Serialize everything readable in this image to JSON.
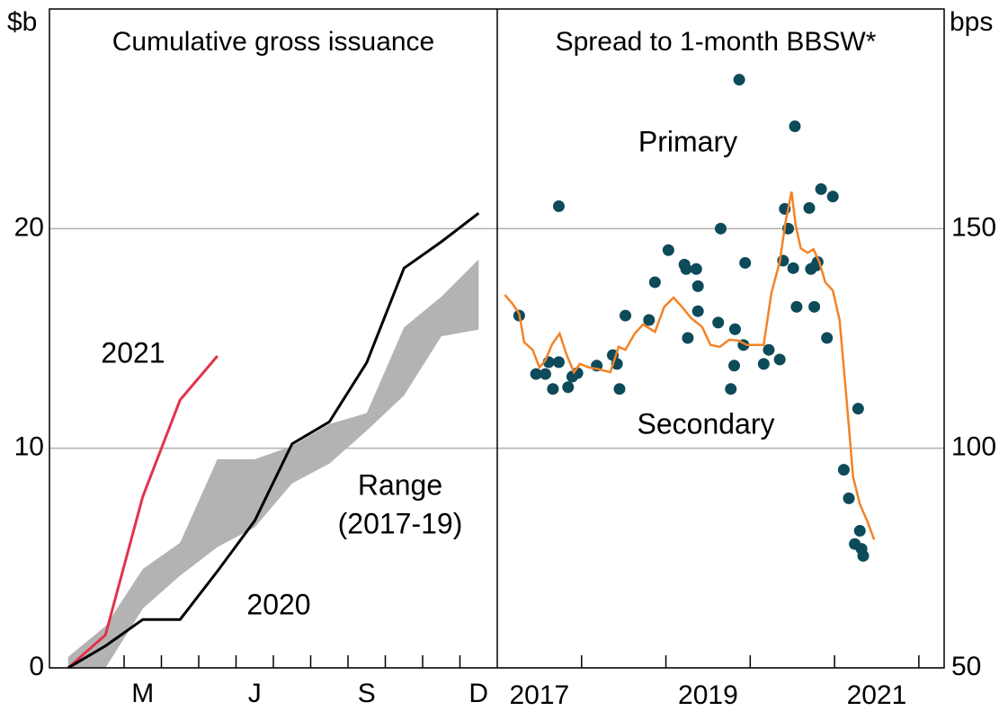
{
  "chart_data": [
    {
      "type": "line",
      "title": "Cumulative gross issuance",
      "y_label": "$b",
      "categories": [
        null,
        null,
        "M",
        null,
        null,
        "J",
        null,
        null,
        "S",
        null,
        null,
        "D"
      ],
      "ylim": [
        0,
        30
      ],
      "yticks": [
        0,
        10,
        20
      ],
      "grid": true,
      "series": [
        {
          "name": "2021",
          "color": "#e2334b",
          "values": [
            0,
            1.5,
            7.8,
            12.2,
            14.2,
            null,
            null,
            null,
            null,
            null,
            null,
            null
          ]
        },
        {
          "name": "2020",
          "color": "#000000",
          "values": [
            0,
            1.0,
            2.2,
            2.2,
            4.4,
            6.7,
            10.2,
            11.2,
            13.9,
            18.2,
            19.4,
            20.7
          ]
        }
      ],
      "band": {
        "labels": [
          "Range",
          "(2017-19)"
        ],
        "color": "#b3b3b3",
        "high": [
          0.5,
          1.9,
          4.5,
          5.7,
          9.5,
          9.5,
          10.1,
          11.1,
          11.6,
          15.5,
          16.9,
          18.6
        ],
        "low": [
          0,
          0,
          2.7,
          4.2,
          5.5,
          6.4,
          8.4,
          9.3,
          10.8,
          12.4,
          15.1,
          15.4
        ]
      }
    },
    {
      "type": "scatter",
      "title": "Spread to 1-month BBSW*",
      "y_label": "bps",
      "xlim": [
        2017,
        2022.3
      ],
      "xticks": [
        2018,
        2019,
        2020,
        2021,
        2022
      ],
      "xlabels": [
        {
          "value": 2017.5,
          "label": "2017"
        },
        {
          "value": 2019.5,
          "label": "2019"
        },
        {
          "value": 2021.5,
          "label": "2021"
        }
      ],
      "ylim": [
        50,
        200
      ],
      "yticks": [
        50,
        100,
        150
      ],
      "grid": true,
      "series": [
        {
          "name": "Primary",
          "type": "scatter",
          "color": "#0d4a5a",
          "x": [
            2017.26,
            2017.46,
            2017.57,
            2017.61,
            2017.66,
            2017.73,
            2017.73,
            2017.84,
            2017.89,
            2017.95,
            2018.18,
            2018.37,
            2018.42,
            2018.45,
            2018.52,
            2018.8,
            2018.87,
            2019.03,
            2019.22,
            2019.24,
            2019.26,
            2019.36,
            2019.38,
            2019.38,
            2019.62,
            2019.65,
            2019.77,
            2019.81,
            2019.82,
            2019.87,
            2019.92,
            2019.94,
            2020.16,
            2020.22,
            2020.35,
            2020.39,
            2020.41,
            2020.45,
            2020.51,
            2020.53,
            2020.55,
            2020.7,
            2020.72,
            2020.76,
            2020.78,
            2020.8,
            2020.84,
            2020.91,
            2020.98,
            2021.11,
            2021.17,
            2021.24,
            2021.28,
            2021.3,
            2021.32,
            2021.34
          ],
          "values": [
            130.2,
            116.9,
            116.9,
            119.6,
            113.5,
            119.6,
            155.1,
            113.9,
            116.3,
            117.1,
            118.8,
            121.2,
            119.2,
            113.5,
            130.2,
            129.2,
            137.8,
            145.1,
            141.8,
            140.8,
            125.1,
            140.8,
            136.9,
            131.2,
            128.6,
            150,
            113.5,
            118.8,
            127.1,
            183.9,
            123.5,
            142.2,
            119.2,
            122.4,
            120.2,
            142.7,
            154.5,
            150,
            141,
            173.3,
            132.2,
            154.7,
            140.8,
            132.2,
            141.6,
            142.4,
            159,
            125.1,
            157.3,
            95.1,
            88.6,
            78.2,
            109,
            81.2,
            77.1,
            75.5
          ]
        },
        {
          "name": "Secondary",
          "type": "line",
          "color": "#f58225",
          "x": [
            2017.09,
            2017.18,
            2017.26,
            2017.32,
            2017.42,
            2017.5,
            2017.57,
            2017.65,
            2017.74,
            2017.82,
            2017.91,
            2017.98,
            2018.09,
            2018.2,
            2018.34,
            2018.44,
            2018.52,
            2018.63,
            2018.73,
            2018.87,
            2018.98,
            2019.09,
            2019.19,
            2019.3,
            2019.43,
            2019.53,
            2019.64,
            2019.75,
            2019.86,
            2019.96,
            2020.07,
            2020.16,
            2020.25,
            2020.35,
            2020.42,
            2020.49,
            2020.54,
            2020.6,
            2020.68,
            2020.75,
            2020.82,
            2020.89,
            2020.98,
            2021.06,
            2021.14,
            2021.22,
            2021.3,
            2021.39,
            2021.47
          ],
          "values": [
            134.9,
            132.9,
            130.6,
            124.1,
            122.4,
            118.4,
            120,
            123.7,
            126.1,
            121.4,
            117.3,
            119.2,
            118.4,
            118,
            117.3,
            123.1,
            122.4,
            126.1,
            128.2,
            126.5,
            132.2,
            134.3,
            132.2,
            129.6,
            127.6,
            123.5,
            123.1,
            124.7,
            124.5,
            123.5,
            123.5,
            123.5,
            135.3,
            142.4,
            151.6,
            158.4,
            150.6,
            145.5,
            144.5,
            145.3,
            142.4,
            137.8,
            135.9,
            129.2,
            111.8,
            93.5,
            87.3,
            83.3,
            79.2
          ]
        }
      ]
    }
  ]
}
